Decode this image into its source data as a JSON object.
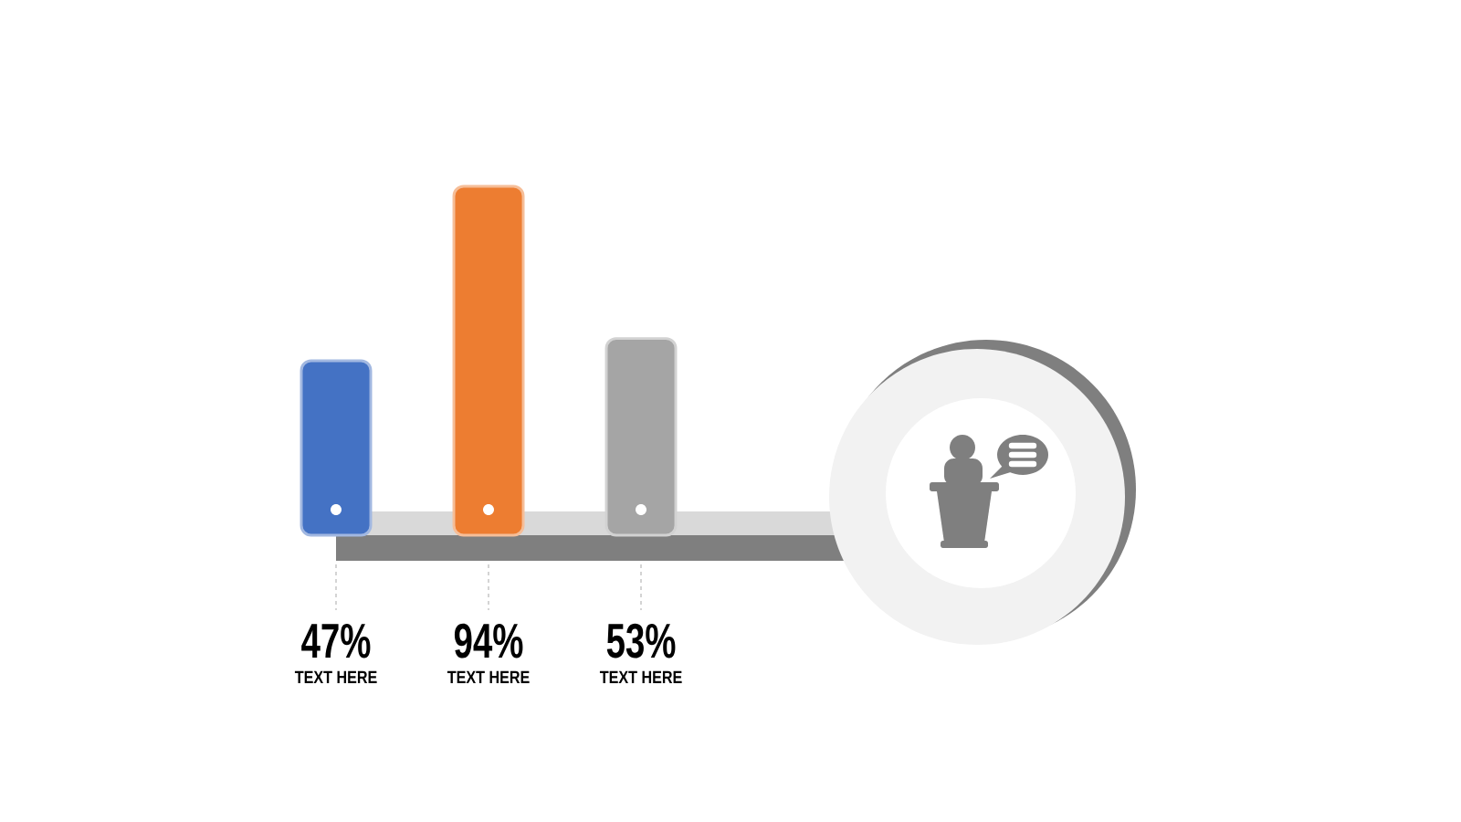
{
  "chart_data": {
    "type": "bar",
    "categories": [
      "TEXT HERE",
      "TEXT HERE",
      "TEXT HERE"
    ],
    "values": [
      47,
      94,
      53
    ],
    "colors": [
      "#4472c4",
      "#ed7d31",
      "#a5a5a5"
    ],
    "value_labels": [
      "47%",
      "94%",
      "53%"
    ],
    "tick_labels": "x"
  }
}
